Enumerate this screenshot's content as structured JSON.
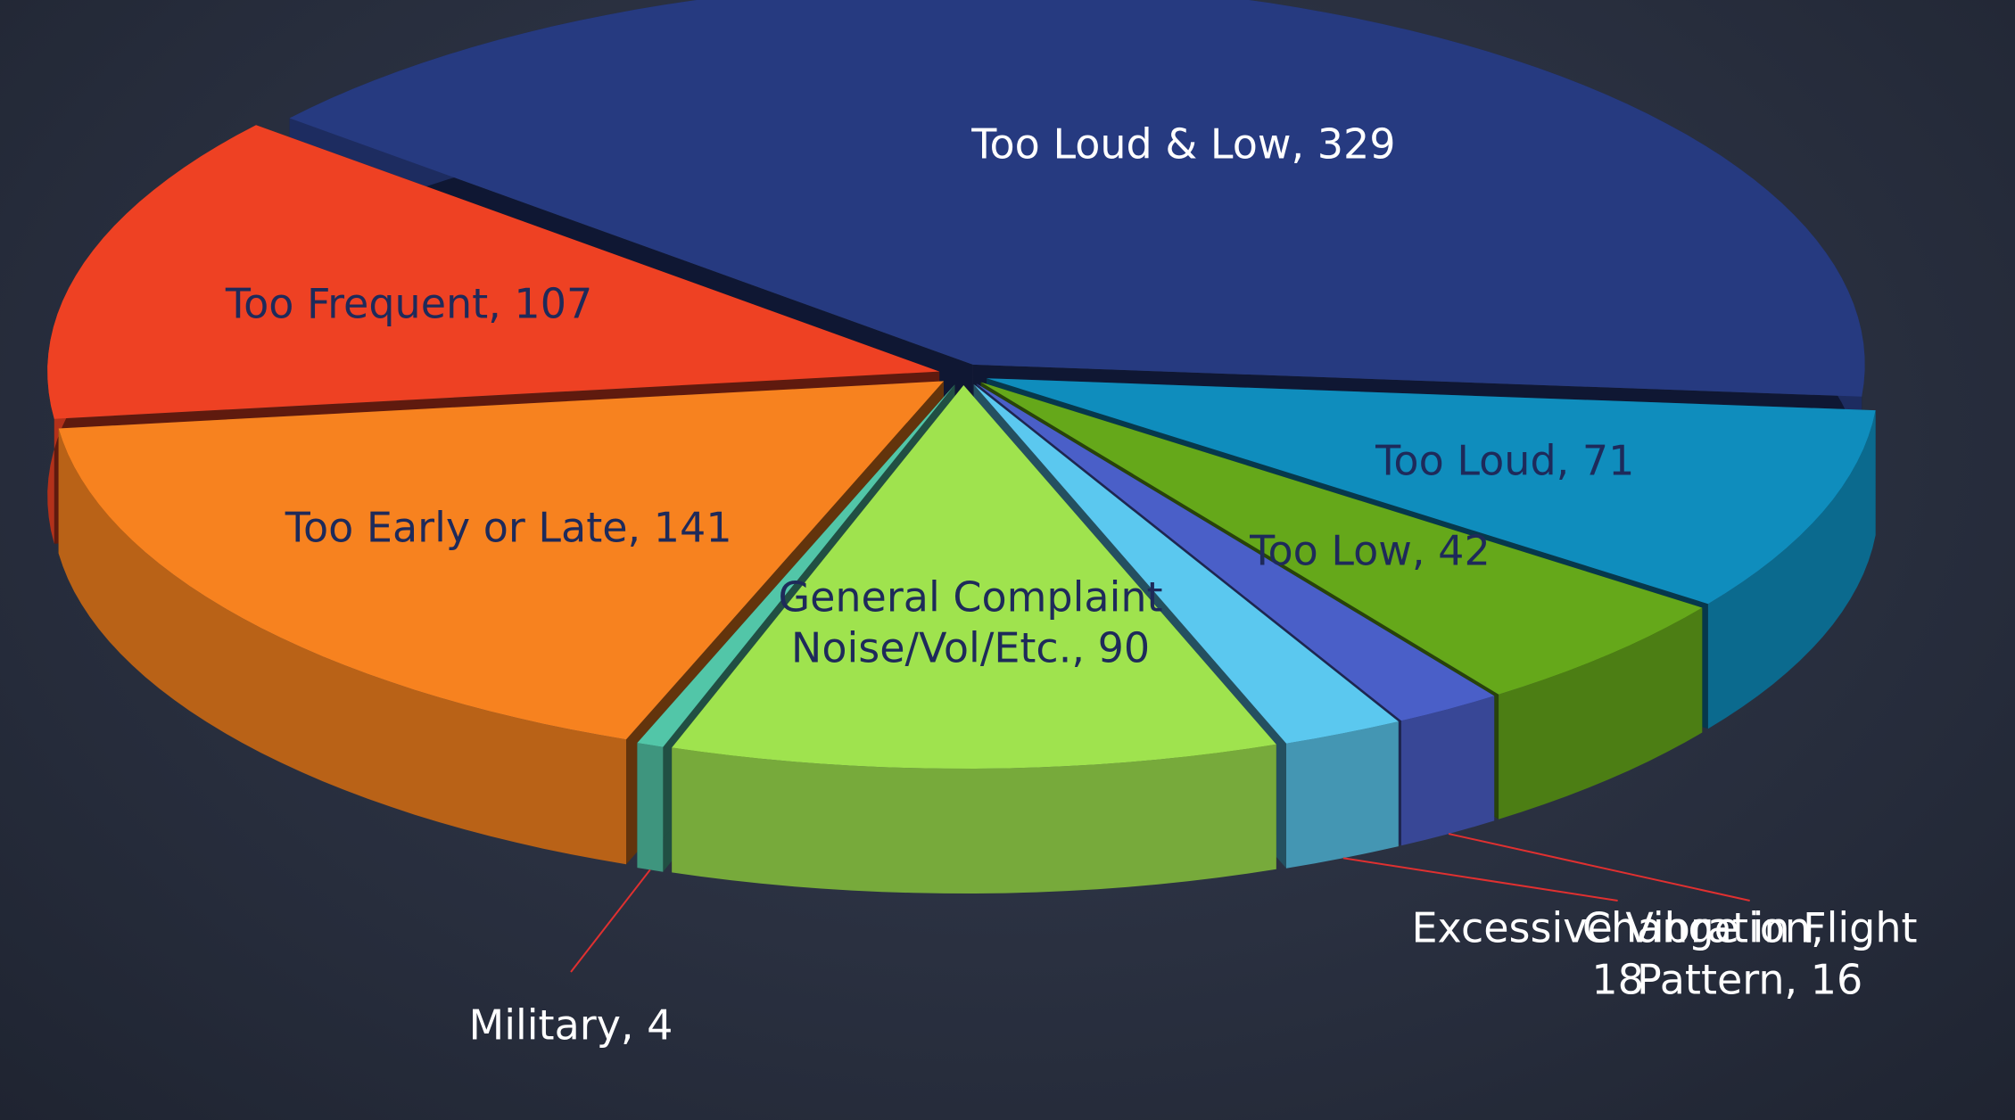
{
  "chart_data": {
    "type": "pie",
    "value_labels": [
      "Too Loud & Low, 329",
      "Too Loud, 71",
      "Too Low, 42",
      "Change in Flight Pattern, 16",
      "Excessive Vibration, 18",
      "General Complaint Noise/Vol/Etc., 90",
      "Military, 4",
      "Too Early or Late, 141",
      "Too Frequent, 107"
    ],
    "values": [
      329,
      71,
      42,
      16,
      18,
      90,
      4,
      141,
      107
    ],
    "colors": [
      "#263a80",
      "#0f8dbd",
      "#65a81a",
      "#4a5fc8",
      "#5bc8ef",
      "#9fe34e",
      "#52c6a8",
      "#f7821f",
      "#ee4123"
    ]
  }
}
